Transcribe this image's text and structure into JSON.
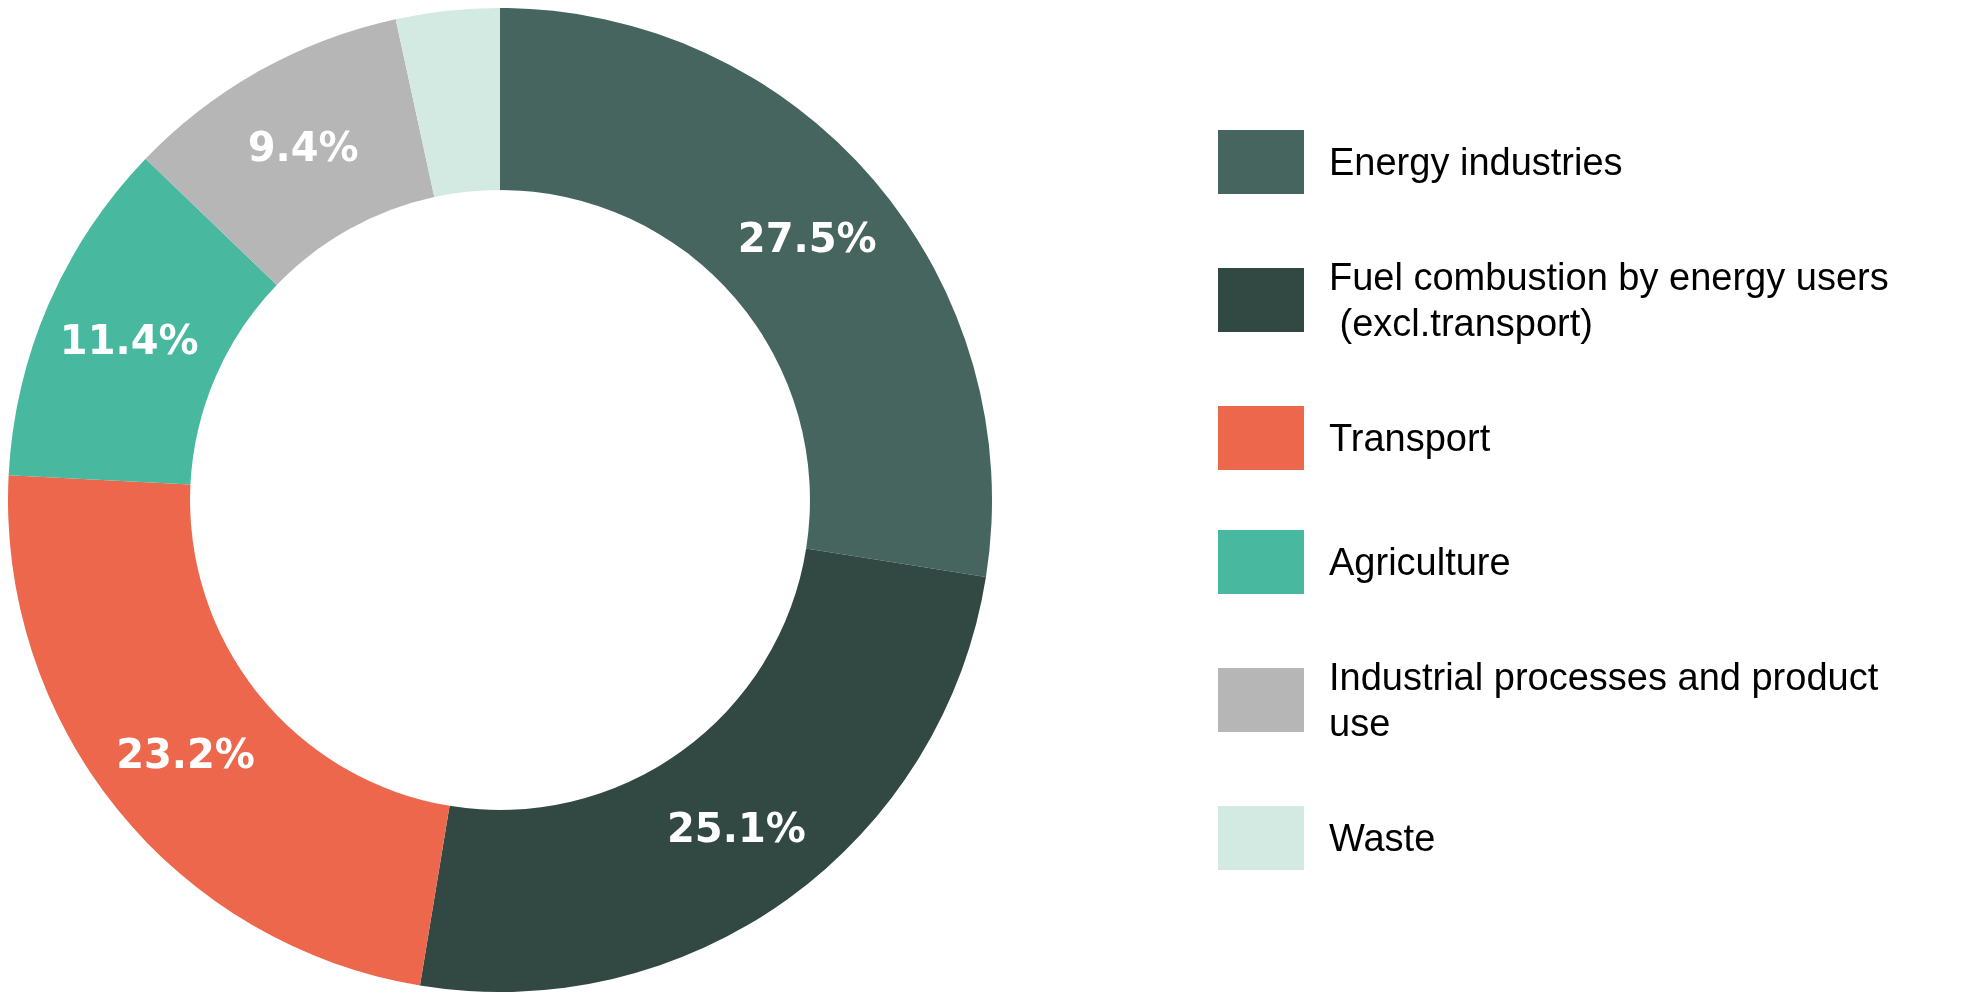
{
  "chart_data": {
    "type": "donut",
    "categories": [
      "Energy industries",
      "Fuel combustion by energy users (excl.transport)",
      "Transport",
      "Agriculture",
      "Industrial processes and product use",
      "Waste"
    ],
    "values": [
      27.5,
      25.1,
      23.2,
      11.4,
      9.4,
      3.4
    ],
    "value_labels": [
      "27.5%",
      "25.1%",
      "23.2%",
      "11.4%",
      "9.4%",
      null
    ],
    "colors": [
      "#47655f",
      "#314843",
      "#ec674c",
      "#48b89f",
      "#b6b6b6",
      "#d3eae2"
    ],
    "legend": "right"
  }
}
